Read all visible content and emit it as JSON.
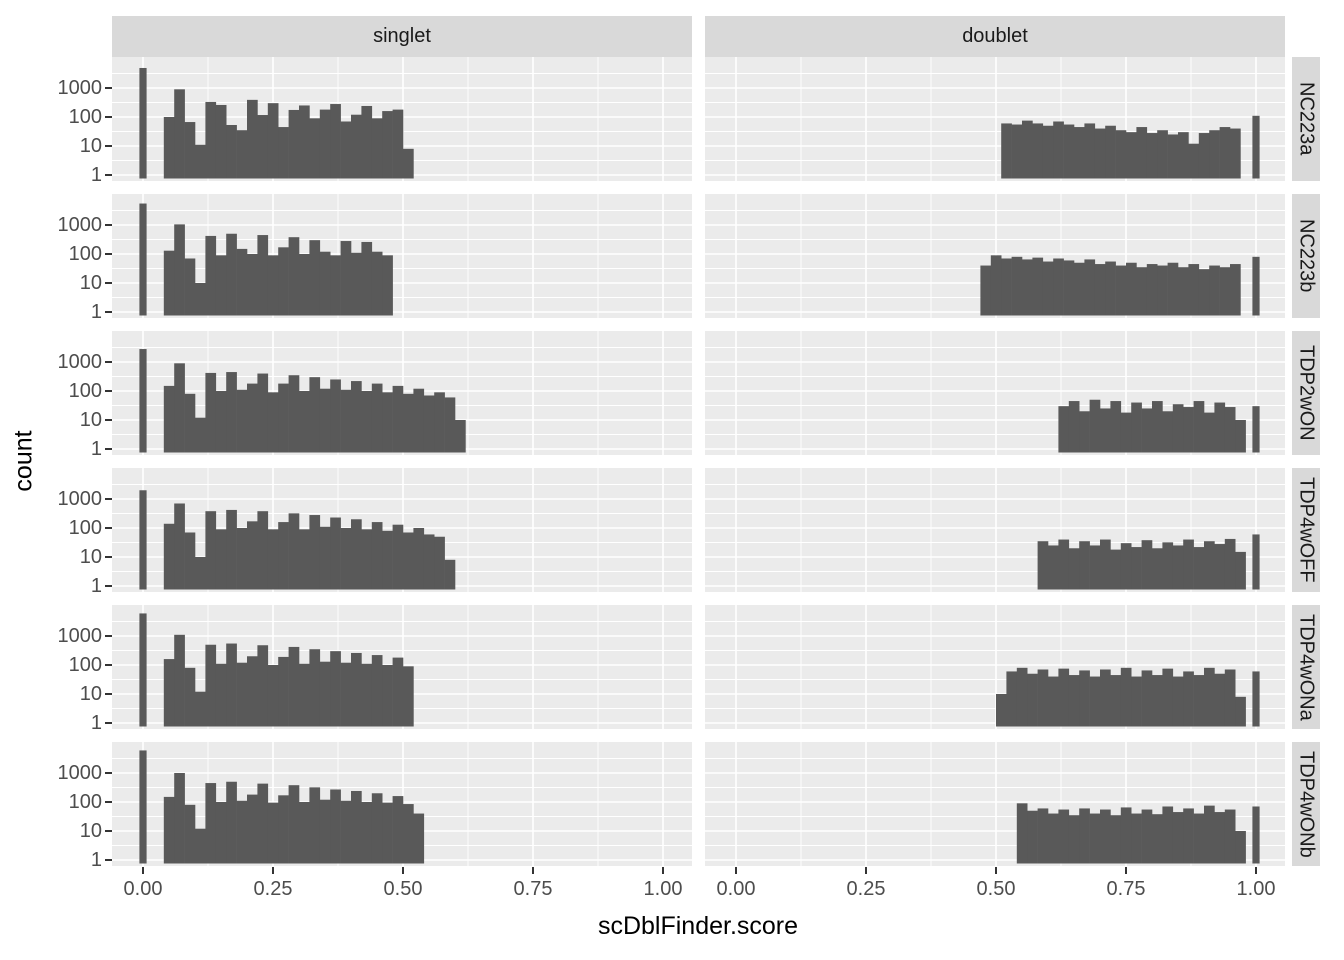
{
  "figure": {
    "x_axis_title": "scDblFinder.score",
    "y_axis_title": "count"
  },
  "chart_data": {
    "type": "bar",
    "subtype": "faceted-histogram",
    "title": "",
    "xlabel": "scDblFinder.score",
    "ylabel": "count",
    "y_scale": "log10",
    "xlim": [
      -0.06,
      1.06
    ],
    "ylim_log": [
      0.62,
      11000
    ],
    "grid": "on",
    "legend_position": "none",
    "facets": {
      "cols": [
        "singlet",
        "doublet"
      ],
      "rows": [
        "NC223a",
        "NC223b",
        "TDP2wON",
        "TDP4wOFF",
        "TDP4wONa",
        "TDP4wONb"
      ]
    },
    "x_ticks": {
      "values": [
        0,
        0.25,
        0.5,
        0.75,
        1.0
      ],
      "labels": [
        "0.00",
        "0.25",
        "0.50",
        "0.75",
        "1.00"
      ]
    },
    "x_minor_ticks": [
      0.125,
      0.375,
      0.625,
      0.875
    ],
    "y_ticks": {
      "values": [
        1000,
        100,
        10,
        1
      ],
      "labels": [
        "1000",
        "100",
        "10",
        "1"
      ]
    },
    "binwidth": 0.02,
    "panels": [
      {
        "row": "NC223a",
        "col": "singlet",
        "spike_x": 0.0,
        "spike_count": 4900,
        "start": 0.04,
        "counts": [
          100,
          900,
          67,
          11,
          330,
          260,
          53,
          35,
          390,
          117,
          300,
          45,
          175,
          250,
          90,
          180,
          280,
          70,
          120,
          240,
          90,
          160,
          180,
          8
        ]
      },
      {
        "row": "NC223a",
        "col": "doublet",
        "spike_x": 1.0,
        "spike_count": 110,
        "start": 0.51,
        "counts": [
          60,
          55,
          75,
          60,
          50,
          70,
          55,
          45,
          60,
          40,
          50,
          35,
          30,
          45,
          28,
          35,
          25,
          30,
          12,
          28,
          35,
          45,
          40
        ]
      },
      {
        "row": "NC223b",
        "col": "singlet",
        "spike_x": 0.0,
        "spike_count": 5500,
        "start": 0.04,
        "counts": [
          130,
          1050,
          70,
          10,
          420,
          90,
          500,
          150,
          100,
          450,
          90,
          170,
          380,
          100,
          300,
          120,
          90,
          280,
          110,
          260,
          120,
          90
        ]
      },
      {
        "row": "NC223b",
        "col": "doublet",
        "spike_x": 1.0,
        "spike_count": 80,
        "start": 0.47,
        "counts": [
          40,
          90,
          70,
          80,
          65,
          75,
          55,
          70,
          60,
          50,
          65,
          45,
          55,
          40,
          50,
          35,
          45,
          40,
          50,
          35,
          45,
          30,
          40,
          35,
          45
        ]
      },
      {
        "row": "TDP2wON",
        "col": "singlet",
        "spike_x": 0.0,
        "spike_count": 2800,
        "start": 0.04,
        "counts": [
          150,
          900,
          80,
          12,
          420,
          100,
          450,
          110,
          180,
          400,
          90,
          180,
          350,
          100,
          300,
          120,
          250,
          110,
          220,
          100,
          180,
          90,
          150,
          80,
          120,
          70,
          90,
          60,
          10
        ]
      },
      {
        "row": "TDP2wON",
        "col": "doublet",
        "spike_x": 1.0,
        "spike_count": 30,
        "start": 0.62,
        "counts": [
          30,
          45,
          20,
          50,
          25,
          45,
          18,
          40,
          25,
          45,
          20,
          35,
          28,
          45,
          18,
          40,
          28,
          10
        ]
      },
      {
        "row": "TDP4wOFF",
        "col": "singlet",
        "spike_x": 0.0,
        "spike_count": 2000,
        "start": 0.04,
        "counts": [
          140,
          700,
          70,
          10,
          380,
          90,
          420,
          100,
          170,
          380,
          90,
          160,
          320,
          90,
          280,
          110,
          230,
          100,
          200,
          90,
          160,
          80,
          130,
          70,
          100,
          60,
          50,
          8
        ]
      },
      {
        "row": "TDP4wOFF",
        "col": "doublet",
        "spike_x": 1.0,
        "spike_count": 60,
        "start": 0.58,
        "counts": [
          35,
          25,
          40,
          20,
          35,
          25,
          40,
          18,
          30,
          22,
          38,
          20,
          32,
          25,
          40,
          22,
          35,
          28,
          42,
          15
        ]
      },
      {
        "row": "TDP4wONa",
        "col": "singlet",
        "spike_x": 0.0,
        "spike_count": 6000,
        "start": 0.04,
        "counts": [
          160,
          1100,
          80,
          12,
          500,
          110,
          550,
          120,
          200,
          480,
          100,
          190,
          420,
          110,
          350,
          130,
          300,
          120,
          260,
          110,
          220,
          100,
          180,
          90
        ]
      },
      {
        "row": "TDP4wONa",
        "col": "doublet",
        "spike_x": 1.0,
        "spike_count": 60,
        "start": 0.5,
        "counts": [
          10,
          60,
          80,
          50,
          70,
          40,
          75,
          45,
          65,
          40,
          70,
          45,
          80,
          40,
          65,
          45,
          75,
          40,
          60,
          45,
          80,
          50,
          70,
          8
        ]
      },
      {
        "row": "TDP4wONb",
        "col": "singlet",
        "spike_x": 0.0,
        "spike_count": 6000,
        "start": 0.04,
        "counts": [
          150,
          1000,
          80,
          12,
          450,
          100,
          500,
          110,
          180,
          430,
          95,
          170,
          380,
          100,
          320,
          120,
          270,
          110,
          240,
          100,
          200,
          95,
          160,
          85,
          40
        ]
      },
      {
        "row": "TDP4wONb",
        "col": "doublet",
        "spike_x": 1.0,
        "spike_count": 70,
        "start": 0.54,
        "counts": [
          90,
          50,
          60,
          40,
          55,
          35,
          60,
          40,
          55,
          35,
          65,
          40,
          55,
          38,
          70,
          45,
          60,
          40,
          75,
          45,
          55,
          10
        ]
      }
    ],
    "colors": {
      "bar_fill": "#595959",
      "panel_background": "#ebebeb",
      "strip_background": "#d9d9d9",
      "grid_line": "#ffffff",
      "tick_label": "#4d4d4d",
      "axis_title": "#000000",
      "strip_text": "#1a1a1a",
      "tick_mark": "#333333",
      "figure_background": "#ffffff"
    }
  }
}
